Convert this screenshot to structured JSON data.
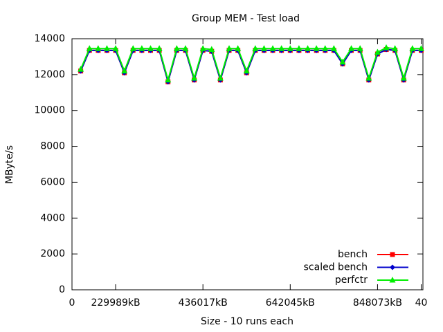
{
  "chart_data": {
    "type": "line",
    "title": "Group MEM - Test load",
    "x_label": "Size - 10 runs each",
    "y_label": "MByte/s",
    "x": [
      1,
      2,
      3,
      4,
      5,
      6,
      7,
      8,
      9,
      10,
      11,
      12,
      13,
      14,
      15,
      16,
      17,
      18,
      19,
      20,
      21,
      22,
      23,
      24,
      25,
      26,
      27,
      28,
      29,
      30,
      31,
      32,
      33,
      34,
      35,
      36,
      37,
      38,
      39,
      40
    ],
    "series": [
      {
        "name": "bench",
        "color": "#ff0000",
        "marker": "square",
        "values": [
          12200,
          13350,
          13350,
          13350,
          13350,
          12100,
          13350,
          13350,
          13350,
          13350,
          11600,
          13350,
          13350,
          11700,
          13350,
          13300,
          11700,
          13350,
          13350,
          12100,
          13350,
          13350,
          13350,
          13350,
          13350,
          13350,
          13350,
          13350,
          13350,
          13350,
          12600,
          13350,
          13350,
          11700,
          13150,
          13400,
          13350,
          11700,
          13350,
          13350
        ]
      },
      {
        "name": "scaled bench",
        "color": "#0000cc",
        "marker": "diamond",
        "values": [
          12200,
          13350,
          13350,
          13350,
          13350,
          12100,
          13350,
          13350,
          13350,
          13350,
          11600,
          13350,
          13350,
          11700,
          13350,
          13300,
          11700,
          13350,
          13350,
          12100,
          13350,
          13350,
          13350,
          13350,
          13350,
          13350,
          13350,
          13350,
          13350,
          13350,
          12600,
          13350,
          13350,
          11700,
          13150,
          13400,
          13350,
          11700,
          13350,
          13350
        ]
      },
      {
        "name": "perfctr",
        "color": "#00ee00",
        "marker": "triangle",
        "values": [
          12300,
          13450,
          13450,
          13450,
          13450,
          12200,
          13450,
          13450,
          13450,
          13450,
          11700,
          13450,
          13450,
          11800,
          13450,
          13400,
          11800,
          13450,
          13450,
          12200,
          13450,
          13450,
          13450,
          13450,
          13450,
          13450,
          13450,
          13450,
          13450,
          13450,
          12700,
          13450,
          13450,
          11800,
          13250,
          13500,
          13450,
          11800,
          13450,
          13450
        ]
      }
    ],
    "xlim": [
      0,
      40.2
    ],
    "ylim": [
      0,
      14000
    ],
    "xticks": [
      0,
      {
        "value": 5,
        "label": "229989kB"
      },
      {
        "value": 15,
        "label": "436017kB"
      },
      {
        "value": 25,
        "label": "642045kB"
      },
      {
        "value": 35,
        "label": "848073kB"
      },
      40
    ],
    "yticks": [
      0,
      2000,
      4000,
      6000,
      8000,
      10000,
      12000,
      14000
    ],
    "legend": "bottom-right"
  }
}
